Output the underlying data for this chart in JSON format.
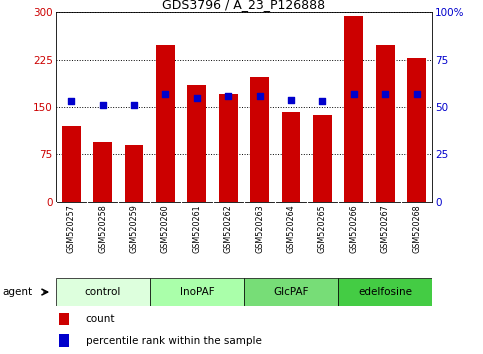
{
  "title": "GDS3796 / A_23_P126888",
  "samples": [
    "GSM520257",
    "GSM520258",
    "GSM520259",
    "GSM520260",
    "GSM520261",
    "GSM520262",
    "GSM520263",
    "GSM520264",
    "GSM520265",
    "GSM520266",
    "GSM520267",
    "GSM520268"
  ],
  "counts": [
    120,
    95,
    90,
    248,
    185,
    170,
    198,
    143,
    138,
    295,
    248,
    228
  ],
  "percentiles": [
    53,
    51,
    51,
    57,
    55,
    56,
    56,
    54,
    53,
    57,
    57,
    57
  ],
  "groups": [
    {
      "label": "control",
      "start": 0,
      "end": 3,
      "color": "#ddffdd"
    },
    {
      "label": "InoPAF",
      "start": 3,
      "end": 6,
      "color": "#aaffaa"
    },
    {
      "label": "GlcPAF",
      "start": 6,
      "end": 9,
      "color": "#77dd77"
    },
    {
      "label": "edelfosine",
      "start": 9,
      "end": 12,
      "color": "#44cc44"
    }
  ],
  "ylim_left": [
    0,
    300
  ],
  "ylim_right": [
    0,
    100
  ],
  "yticks_left": [
    0,
    75,
    150,
    225,
    300
  ],
  "ytick_labels_left": [
    "0",
    "75",
    "150",
    "225",
    "300"
  ],
  "yticks_right": [
    0,
    25,
    50,
    75,
    100
  ],
  "ytick_labels_right": [
    "0",
    "25",
    "50",
    "75",
    "100%"
  ],
  "bar_color": "#cc0000",
  "dot_color": "#0000cc",
  "bg_color": "#ffffff",
  "left_label_color": "#cc0000",
  "right_label_color": "#0000cc",
  "xtick_bg": "#cccccc",
  "agent_label": "agent",
  "legend_count": "count",
  "legend_pct": "percentile rank within the sample"
}
